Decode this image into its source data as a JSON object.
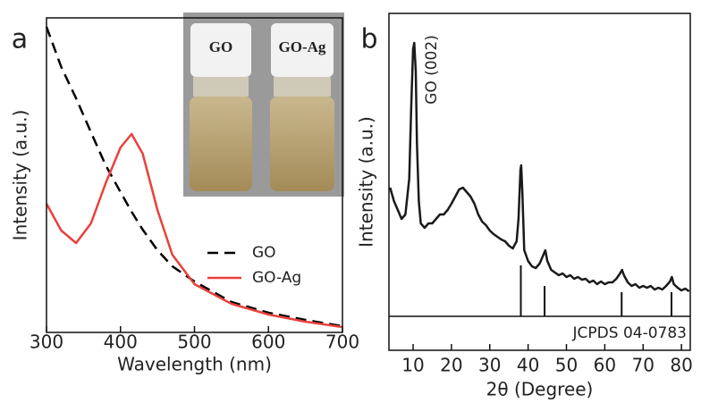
{
  "chart_data": [
    {
      "type": "line",
      "panel_label": "a",
      "xlabel": "Wavelength (nm)",
      "ylabel": "Intensity (a.u.)",
      "inset_labels": [
        "GO",
        "GO-Ag"
      ],
      "legend": "right",
      "x": [
        300,
        320,
        340,
        360,
        380,
        400,
        415,
        430,
        450,
        470,
        500,
        550,
        600,
        650,
        700
      ],
      "xlim": [
        300,
        700
      ],
      "xticks": [
        300,
        400,
        500,
        600,
        700
      ],
      "ylim": [
        0,
        352
      ],
      "series": [
        {
          "name": "GO",
          "color": "#000000",
          "dash": true,
          "values": [
            342,
            297,
            262,
            224,
            187,
            157,
            135,
            115,
            92,
            74,
            57,
            34,
            22,
            14,
            7
          ]
        },
        {
          "name": "GO-Ag",
          "color": "#e8413c",
          "dash": false,
          "values": [
            144,
            114,
            100,
            122,
            167,
            207,
            222,
            200,
            137,
            87,
            54,
            32,
            20,
            12,
            6
          ]
        }
      ]
    },
    {
      "type": "line",
      "panel_label": "b",
      "xlabel": "2θ (Degree)",
      "ylabel": "Intensity (a.u.)",
      "annotation": "GO (002)",
      "x": [
        4,
        5,
        6,
        7,
        8,
        9,
        9.5,
        10,
        10.3,
        10.7,
        11,
        11.5,
        12,
        13,
        14,
        15,
        16,
        17,
        18,
        19,
        20,
        21,
        22,
        23,
        24,
        25,
        26,
        27,
        28,
        29,
        30,
        31,
        32,
        33,
        34,
        35,
        36,
        37,
        37.5,
        38,
        38.2,
        38.5,
        39,
        40,
        41,
        42,
        43,
        44,
        44.5,
        45,
        46,
        47,
        48,
        49,
        50,
        51,
        52,
        53,
        54,
        55,
        56,
        57,
        58,
        59,
        60,
        61,
        62,
        63,
        64,
        64.5,
        65,
        66,
        67,
        68,
        69,
        70,
        71,
        72,
        73,
        74,
        75,
        76,
        77,
        77.5,
        78,
        79,
        80,
        81,
        82
      ],
      "xlim": [
        3.7,
        82.3
      ],
      "xticks": [
        10,
        20,
        30,
        40,
        50,
        60,
        70,
        80
      ],
      "ylim": [
        0,
        377
      ],
      "series": [
        {
          "color": "#1a1a1a",
          "dash": false,
          "values": [
            182,
            167,
            157,
            147,
            152,
            192,
            272,
            337,
            344,
            312,
            232,
            167,
            142,
            137,
            142,
            142,
            147,
            152,
            152,
            157,
            164,
            172,
            180,
            182,
            177,
            172,
            164,
            152,
            144,
            140,
            134,
            130,
            127,
            124,
            122,
            117,
            114,
            122,
            147,
            202,
            207,
            177,
            112,
            100,
            94,
            92,
            97,
            107,
            112,
            100,
            90,
            87,
            84,
            86,
            82,
            84,
            80,
            82,
            79,
            80,
            76,
            78,
            74,
            77,
            74,
            76,
            76,
            80,
            86,
            90,
            84,
            76,
            72,
            74,
            70,
            72,
            70,
            72,
            68,
            70,
            68,
            72,
            77,
            82,
            74,
            70,
            67,
            69,
            66
          ]
        }
      ],
      "reference": {
        "label": "JCPDS 04-0783",
        "baseline": 38,
        "x": [
          38.1,
          44.3,
          64.4,
          77.4
        ],
        "values": [
          95,
          72,
          65,
          65
        ]
      }
    }
  ]
}
